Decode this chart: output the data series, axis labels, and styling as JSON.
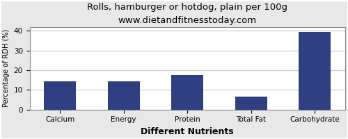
{
  "title": "Rolls, hamburger or hotdog, plain per 100g",
  "subtitle": "www.dietandfitnesstoday.com",
  "xlabel": "Different Nutrients",
  "ylabel": "Percentage of RDH (%)",
  "categories": [
    "Calcium",
    "Energy",
    "Protein",
    "Total Fat",
    "Carbohydrate"
  ],
  "values": [
    14.5,
    14.5,
    17.5,
    6.5,
    39.5
  ],
  "bar_color": "#2e4082",
  "ylim": [
    0,
    42
  ],
  "yticks": [
    0,
    10,
    20,
    30,
    40
  ],
  "background_color": "#e8e8e8",
  "plot_bg_color": "#ffffff",
  "title_fontsize": 9.5,
  "subtitle_fontsize": 8,
  "xlabel_fontsize": 9,
  "ylabel_fontsize": 7,
  "tick_fontsize": 7.5,
  "grid_color": "#c8c8c8",
  "border_color": "#888888"
}
